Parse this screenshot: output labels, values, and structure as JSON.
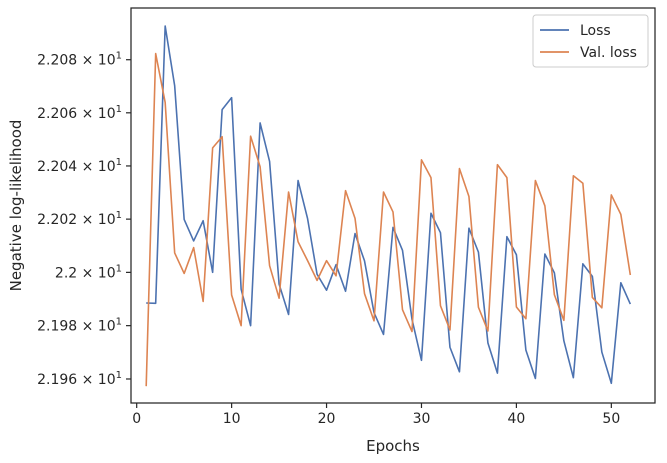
{
  "chart_data": {
    "type": "line",
    "xlabel": "Epochs",
    "ylabel": "Negative log-likelihood",
    "xlim": [
      -0.6,
      54.6
    ],
    "ylim": [
      21.951,
      22.0995
    ],
    "yscale": "log",
    "grid": false,
    "legend_position": "top-right",
    "x_ticks": [
      0,
      10,
      20,
      30,
      40,
      50
    ],
    "x_tick_labels": [
      "0",
      "10",
      "20",
      "30",
      "40",
      "50"
    ],
    "y_ticks": [
      21.96,
      21.98,
      22.0,
      22.02,
      22.04,
      22.06,
      22.08
    ],
    "y_tick_labels": [
      {
        "mantissa": "2.196",
        "base": "10",
        "exp": "1"
      },
      {
        "mantissa": "2.198",
        "base": "10",
        "exp": "1"
      },
      {
        "mantissa": "2.2",
        "base": "10",
        "exp": "1"
      },
      {
        "mantissa": "2.202",
        "base": "10",
        "exp": "1"
      },
      {
        "mantissa": "2.204",
        "base": "10",
        "exp": "1"
      },
      {
        "mantissa": "2.206",
        "base": "10",
        "exp": "1"
      },
      {
        "mantissa": "2.208",
        "base": "10",
        "exp": "1"
      }
    ],
    "x": [
      1,
      2,
      3,
      4,
      5,
      6,
      7,
      8,
      9,
      10,
      11,
      12,
      13,
      14,
      15,
      16,
      17,
      18,
      19,
      20,
      21,
      22,
      23,
      24,
      25,
      26,
      27,
      28,
      29,
      30,
      31,
      32,
      33,
      34,
      35,
      36,
      37,
      38,
      39,
      40,
      41,
      42,
      43,
      44,
      45,
      46,
      47,
      48,
      49,
      50,
      51,
      52
    ],
    "series": [
      {
        "name": "Loss",
        "color": "#4c72b0",
        "values": [
          21.9885,
          21.9884,
          22.0927,
          22.0702,
          22.0199,
          22.0118,
          22.0194,
          22.0,
          22.0612,
          22.0657,
          21.9937,
          21.98,
          22.0562,
          22.0417,
          21.9956,
          21.9842,
          22.0345,
          22.0202,
          21.9993,
          21.9933,
          22.0029,
          21.9929,
          22.0146,
          22.0043,
          21.9849,
          21.9767,
          22.0169,
          22.0083,
          21.9824,
          21.967,
          22.0222,
          22.0149,
          21.9719,
          21.9627,
          22.0166,
          22.0076,
          21.9735,
          21.9622,
          22.0134,
          22.0066,
          21.9708,
          21.9602,
          22.0069,
          21.9998,
          21.9743,
          21.9605,
          22.0032,
          21.9985,
          21.9701,
          21.9584,
          21.9961,
          21.9881
        ]
      },
      {
        "name": "Val. loss",
        "color": "#dd8452",
        "values": [
          21.9573,
          22.0823,
          22.0639,
          22.0073,
          21.9996,
          22.0093,
          21.9891,
          22.0468,
          22.051,
          21.9915,
          21.98,
          22.0512,
          22.0397,
          22.0025,
          21.9903,
          22.0302,
          22.0115,
          22.0044,
          21.997,
          22.0044,
          21.9987,
          22.0307,
          22.0203,
          21.992,
          21.9818,
          22.0302,
          22.0227,
          21.986,
          21.9778,
          22.0423,
          22.0356,
          21.9875,
          21.9784,
          22.039,
          22.0285,
          21.9869,
          21.978,
          22.0405,
          22.0356,
          21.987,
          21.9826,
          22.0345,
          22.025,
          21.9916,
          21.982,
          22.0363,
          22.0335,
          21.9906,
          21.9867,
          22.0291,
          22.0218,
          21.999
        ]
      }
    ]
  }
}
